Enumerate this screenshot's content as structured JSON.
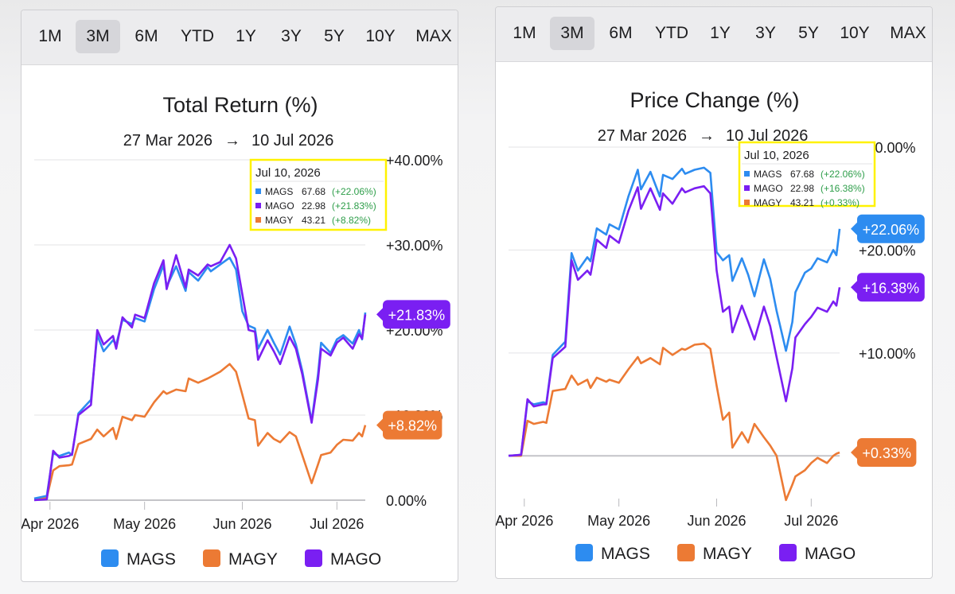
{
  "range_buttons": [
    "1M",
    "3M",
    "6M",
    "YTD",
    "1Y",
    "3Y",
    "5Y",
    "10Y",
    "MAX"
  ],
  "active_range": "3M",
  "colors": {
    "MAGS": "#2d8cf0",
    "MAGY": "#ec7a34",
    "MAGO": "#7a1ff2",
    "highlight": "#fff200"
  },
  "chart_data": [
    {
      "type": "line",
      "title": "Total Return (%)",
      "date_start": "27 Mar 2026",
      "date_end": "10 Jul 2026",
      "date_arrow": "→",
      "xlim": [
        "2026-03-27",
        "2026-07-10"
      ],
      "x_ticks": [
        {
          "date": "2026-04-01",
          "label": "Apr 2026"
        },
        {
          "date": "2026-05-01",
          "label": "May 2026"
        },
        {
          "date": "2026-06-01",
          "label": "Jun 2026"
        },
        {
          "date": "2026-07-01",
          "label": "Jul 2026"
        }
      ],
      "ylim": [
        0,
        40
      ],
      "y_ticks": [
        {
          "value": 40,
          "label": "+40.00%"
        },
        {
          "value": 30,
          "label": "+30.00%"
        },
        {
          "value": 20,
          "label": "+20.00%"
        },
        {
          "value": 10,
          "label": "+10.00%"
        },
        {
          "value": 0,
          "label": "0.00%"
        }
      ],
      "legend": [
        "MAGS",
        "MAGY",
        "MAGO"
      ],
      "tooltip": {
        "date": "Jul 10, 2026",
        "rows": [
          {
            "ticker": "MAGS",
            "price": "67.68",
            "change": "(+22.06%)"
          },
          {
            "ticker": "MAGO",
            "price": "22.98",
            "change": "(+21.83%)"
          },
          {
            "ticker": "MAGY",
            "price": "43.21",
            "change": "(+8.82%)"
          }
        ]
      },
      "end_labels": [
        {
          "series": "MAGO",
          "label": "+21.83%",
          "value": 21.83
        },
        {
          "series": "MAGY",
          "label": "+8.82%",
          "value": 8.82
        }
      ],
      "series": [
        {
          "name": "MAGS",
          "dates": [
            "2026-03-27",
            "2026-03-31",
            "2026-04-02",
            "2026-04-04",
            "2026-04-07",
            "2026-04-08",
            "2026-04-10",
            "2026-04-14",
            "2026-04-16",
            "2026-04-18",
            "2026-04-21",
            "2026-04-22",
            "2026-04-24",
            "2026-04-27",
            "2026-04-28",
            "2026-05-01",
            "2026-05-04",
            "2026-05-07",
            "2026-05-08",
            "2026-05-11",
            "2026-05-14",
            "2026-05-15",
            "2026-05-18",
            "2026-05-21",
            "2026-05-22",
            "2026-05-25",
            "2026-05-28",
            "2026-05-30",
            "2026-06-01",
            "2026-06-03",
            "2026-06-05",
            "2026-06-06",
            "2026-06-09",
            "2026-06-11",
            "2026-06-13",
            "2026-06-16",
            "2026-06-18",
            "2026-06-20",
            "2026-06-23",
            "2026-06-25",
            "2026-06-26",
            "2026-06-29",
            "2026-07-01",
            "2026-07-03",
            "2026-07-06",
            "2026-07-08",
            "2026-07-09",
            "2026-07-10"
          ],
          "values": [
            0.2,
            0.5,
            5.5,
            5.2,
            5.6,
            5.3,
            10.2,
            11.8,
            19.4,
            17.5,
            18.8,
            18.3,
            21.2,
            20.7,
            21.4,
            21.0,
            24.8,
            27.6,
            25.1,
            27.5,
            24.6,
            26.8,
            25.8,
            27.4,
            26.9,
            27.7,
            28.5,
            27.1,
            22.2,
            20.5,
            20.2,
            17.8,
            20.0,
            18.5,
            17.1,
            20.4,
            18.3,
            15.2,
            9.3,
            14.8,
            18.5,
            17.3,
            18.9,
            19.4,
            18.4,
            20.0,
            18.9,
            22.06
          ]
        },
        {
          "name": "MAGO",
          "dates": [
            "2026-03-27",
            "2026-03-31",
            "2026-04-02",
            "2026-04-04",
            "2026-04-07",
            "2026-04-08",
            "2026-04-10",
            "2026-04-14",
            "2026-04-16",
            "2026-04-18",
            "2026-04-21",
            "2026-04-22",
            "2026-04-24",
            "2026-04-27",
            "2026-04-28",
            "2026-05-01",
            "2026-05-04",
            "2026-05-07",
            "2026-05-08",
            "2026-05-11",
            "2026-05-14",
            "2026-05-15",
            "2026-05-18",
            "2026-05-21",
            "2026-05-22",
            "2026-05-25",
            "2026-05-28",
            "2026-05-30",
            "2026-06-01",
            "2026-06-03",
            "2026-06-05",
            "2026-06-06",
            "2026-06-09",
            "2026-06-11",
            "2026-06-13",
            "2026-06-16",
            "2026-06-18",
            "2026-06-20",
            "2026-06-23",
            "2026-06-25",
            "2026-06-26",
            "2026-06-29",
            "2026-07-01",
            "2026-07-03",
            "2026-07-06",
            "2026-07-08",
            "2026-07-09",
            "2026-07-10"
          ],
          "values": [
            0.0,
            0.1,
            5.8,
            5.0,
            5.2,
            5.4,
            10.0,
            11.2,
            20.0,
            18.3,
            19.3,
            17.8,
            21.5,
            20.3,
            21.8,
            21.4,
            25.5,
            28.2,
            24.8,
            28.8,
            25.0,
            27.1,
            26.4,
            27.7,
            27.5,
            28.0,
            30.0,
            28.4,
            24.2,
            20.0,
            19.8,
            16.5,
            18.8,
            17.5,
            16.0,
            19.2,
            17.8,
            14.8,
            9.1,
            14.2,
            17.8,
            17.0,
            18.5,
            19.1,
            17.8,
            19.5,
            19.0,
            21.83
          ]
        },
        {
          "name": "MAGY",
          "dates": [
            "2026-03-27",
            "2026-03-31",
            "2026-04-02",
            "2026-04-04",
            "2026-04-07",
            "2026-04-08",
            "2026-04-10",
            "2026-04-14",
            "2026-04-16",
            "2026-04-18",
            "2026-04-21",
            "2026-04-22",
            "2026-04-24",
            "2026-04-27",
            "2026-04-28",
            "2026-05-01",
            "2026-05-04",
            "2026-05-07",
            "2026-05-08",
            "2026-05-11",
            "2026-05-14",
            "2026-05-15",
            "2026-05-18",
            "2026-05-21",
            "2026-05-22",
            "2026-05-25",
            "2026-05-28",
            "2026-05-30",
            "2026-06-01",
            "2026-06-03",
            "2026-06-05",
            "2026-06-06",
            "2026-06-09",
            "2026-06-11",
            "2026-06-13",
            "2026-06-16",
            "2026-06-18",
            "2026-06-20",
            "2026-06-23",
            "2026-06-25",
            "2026-06-26",
            "2026-06-29",
            "2026-07-01",
            "2026-07-03",
            "2026-07-06",
            "2026-07-08",
            "2026-07-09",
            "2026-07-10"
          ],
          "values": [
            0.2,
            0.3,
            3.5,
            4.0,
            4.1,
            4.2,
            6.6,
            7.2,
            8.3,
            7.5,
            8.5,
            7.2,
            9.8,
            9.4,
            10.0,
            9.8,
            11.5,
            12.8,
            12.5,
            13.0,
            12.8,
            14.3,
            13.8,
            14.3,
            14.5,
            15.1,
            16.0,
            15.1,
            12.4,
            9.6,
            9.4,
            6.4,
            7.9,
            7.2,
            6.8,
            8.0,
            7.5,
            5.3,
            2.0,
            4.2,
            5.3,
            5.6,
            6.5,
            7.1,
            7.0,
            7.9,
            7.5,
            8.82
          ]
        }
      ]
    },
    {
      "type": "line",
      "title": "Price Change (%)",
      "date_start": "27 Mar 2026",
      "date_end": "10 Jul 2026",
      "date_arrow": "→",
      "xlim": [
        "2026-03-27",
        "2026-07-10"
      ],
      "x_ticks": [
        {
          "date": "2026-04-01",
          "label": "Apr 2026"
        },
        {
          "date": "2026-05-01",
          "label": "May 2026"
        },
        {
          "date": "2026-06-01",
          "label": "Jun 2026"
        },
        {
          "date": "2026-07-01",
          "label": "Jul 2026"
        }
      ],
      "ylim": [
        -4,
        30
      ],
      "y_ticks": [
        {
          "value": 30,
          "label": "+30.00%"
        },
        {
          "value": 20,
          "label": "+20.00%"
        },
        {
          "value": 10,
          "label": "+10.00%"
        }
      ],
      "zero_line": 0,
      "legend": [
        "MAGS",
        "MAGY",
        "MAGO"
      ],
      "tooltip": {
        "date": "Jul 10, 2026",
        "rows": [
          {
            "ticker": "MAGS",
            "price": "67.68",
            "change": "(+22.06%)"
          },
          {
            "ticker": "MAGO",
            "price": "22.98",
            "change": "(+16.38%)"
          },
          {
            "ticker": "MAGY",
            "price": "43.21",
            "change": "(+0.33%)"
          }
        ]
      },
      "end_labels": [
        {
          "series": "MAGS",
          "label": "+22.06%",
          "value": 22.06
        },
        {
          "series": "MAGO",
          "label": "+16.38%",
          "value": 16.38
        },
        {
          "series": "MAGY",
          "label": "+0.33%",
          "value": 0.33
        }
      ],
      "series": [
        {
          "name": "MAGS",
          "dates": [
            "2026-03-27",
            "2026-03-31",
            "2026-04-02",
            "2026-04-04",
            "2026-04-07",
            "2026-04-08",
            "2026-04-10",
            "2026-04-14",
            "2026-04-16",
            "2026-04-18",
            "2026-04-21",
            "2026-04-22",
            "2026-04-24",
            "2026-04-27",
            "2026-04-28",
            "2026-05-01",
            "2026-05-04",
            "2026-05-07",
            "2026-05-08",
            "2026-05-11",
            "2026-05-14",
            "2026-05-15",
            "2026-05-18",
            "2026-05-21",
            "2026-05-22",
            "2026-05-25",
            "2026-05-28",
            "2026-05-30",
            "2026-06-01",
            "2026-06-03",
            "2026-06-05",
            "2026-06-06",
            "2026-06-09",
            "2026-06-11",
            "2026-06-13",
            "2026-06-16",
            "2026-06-18",
            "2026-06-20",
            "2026-06-23",
            "2026-06-25",
            "2026-06-26",
            "2026-06-29",
            "2026-07-01",
            "2026-07-03",
            "2026-07-06",
            "2026-07-08",
            "2026-07-09",
            "2026-07-10"
          ],
          "values": [
            0.0,
            0.1,
            5.3,
            5.0,
            5.2,
            5.1,
            9.8,
            11.1,
            19.7,
            18.0,
            19.3,
            18.9,
            22.1,
            21.5,
            22.5,
            22.0,
            25.2,
            27.8,
            25.9,
            27.6,
            25.2,
            27.3,
            26.9,
            27.9,
            27.4,
            27.8,
            28.0,
            27.5,
            19.8,
            19.0,
            19.5,
            17.0,
            19.2,
            17.6,
            15.5,
            19.1,
            17.2,
            14.1,
            10.2,
            13.0,
            15.9,
            17.8,
            18.2,
            19.2,
            18.8,
            20.0,
            19.5,
            22.06
          ]
        },
        {
          "name": "MAGO",
          "dates": [
            "2026-03-27",
            "2026-03-31",
            "2026-04-02",
            "2026-04-04",
            "2026-04-07",
            "2026-04-08",
            "2026-04-10",
            "2026-04-14",
            "2026-04-16",
            "2026-04-18",
            "2026-04-21",
            "2026-04-22",
            "2026-04-24",
            "2026-04-27",
            "2026-04-28",
            "2026-05-01",
            "2026-05-04",
            "2026-05-07",
            "2026-05-08",
            "2026-05-11",
            "2026-05-14",
            "2026-05-15",
            "2026-05-18",
            "2026-05-21",
            "2026-05-22",
            "2026-05-25",
            "2026-05-28",
            "2026-05-30",
            "2026-06-01",
            "2026-06-03",
            "2026-06-05",
            "2026-06-06",
            "2026-06-09",
            "2026-06-11",
            "2026-06-13",
            "2026-06-16",
            "2026-06-18",
            "2026-06-20",
            "2026-06-23",
            "2026-06-25",
            "2026-06-26",
            "2026-06-29",
            "2026-07-01",
            "2026-07-03",
            "2026-07-06",
            "2026-07-08",
            "2026-07-09",
            "2026-07-10"
          ],
          "values": [
            0.0,
            0.1,
            5.5,
            4.8,
            5.0,
            5.0,
            9.5,
            10.6,
            19.0,
            17.1,
            18.0,
            17.6,
            21.0,
            20.2,
            21.4,
            20.7,
            23.8,
            26.1,
            24.0,
            26.0,
            23.9,
            25.5,
            24.5,
            26.0,
            25.6,
            26.0,
            26.2,
            25.5,
            18.0,
            14.0,
            14.5,
            12.0,
            14.6,
            13.0,
            11.3,
            14.5,
            12.6,
            9.6,
            5.3,
            8.5,
            11.5,
            12.8,
            13.5,
            14.4,
            14.0,
            15.0,
            14.6,
            16.38
          ]
        },
        {
          "name": "MAGY",
          "dates": [
            "2026-03-27",
            "2026-03-31",
            "2026-04-02",
            "2026-04-04",
            "2026-04-07",
            "2026-04-08",
            "2026-04-10",
            "2026-04-14",
            "2026-04-16",
            "2026-04-18",
            "2026-04-21",
            "2026-04-22",
            "2026-04-24",
            "2026-04-27",
            "2026-04-28",
            "2026-05-01",
            "2026-05-04",
            "2026-05-07",
            "2026-05-08",
            "2026-05-11",
            "2026-05-14",
            "2026-05-15",
            "2026-05-18",
            "2026-05-21",
            "2026-05-22",
            "2026-05-25",
            "2026-05-28",
            "2026-05-30",
            "2026-06-01",
            "2026-06-03",
            "2026-06-05",
            "2026-06-06",
            "2026-06-09",
            "2026-06-11",
            "2026-06-13",
            "2026-06-16",
            "2026-06-18",
            "2026-06-20",
            "2026-06-23",
            "2026-06-25",
            "2026-06-26",
            "2026-06-29",
            "2026-07-01",
            "2026-07-03",
            "2026-07-06",
            "2026-07-08",
            "2026-07-09",
            "2026-07-10"
          ],
          "values": [
            0.0,
            0.0,
            3.4,
            3.1,
            3.3,
            3.2,
            6.3,
            6.5,
            7.8,
            6.9,
            7.4,
            6.6,
            7.6,
            7.2,
            7.4,
            7.1,
            8.4,
            9.6,
            9.0,
            9.5,
            8.9,
            10.5,
            9.8,
            10.4,
            10.3,
            10.8,
            10.9,
            10.4,
            6.8,
            3.5,
            4.2,
            0.8,
            2.3,
            1.3,
            3.1,
            1.8,
            1.0,
            0.0,
            -4.3,
            -2.8,
            -2.0,
            -1.4,
            -0.7,
            -0.2,
            -0.7,
            0.0,
            0.2,
            0.33
          ]
        }
      ]
    }
  ]
}
